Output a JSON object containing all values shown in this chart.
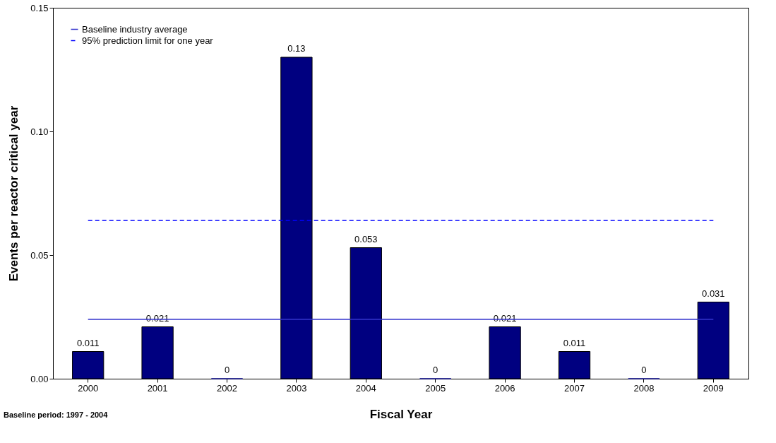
{
  "chart_data": {
    "type": "bar",
    "xlabel": "Fiscal Year",
    "ylabel": "Events per reactor critical year",
    "categories": [
      "2000",
      "2001",
      "2002",
      "2003",
      "2004",
      "2005",
      "2006",
      "2007",
      "2008",
      "2009"
    ],
    "values": [
      0.011,
      0.021,
      0,
      0.13,
      0.053,
      0,
      0.021,
      0.011,
      0,
      0.031
    ],
    "color": "#000080",
    "data_labels": true,
    "ylim": [
      0,
      0.15
    ],
    "yticks": [
      {
        "value": 0,
        "label": "0.00"
      },
      {
        "value": 0.05,
        "label": "0.05"
      },
      {
        "value": 0.1,
        "label": "0.10"
      },
      {
        "value": 0.15,
        "label": "0.15"
      }
    ],
    "grid": false,
    "legend": "top left",
    "ref_lines": [
      {
        "axis": "y",
        "value": 0.024,
        "label": "Baseline industry average",
        "color": "#3333cc",
        "line_style": "solid"
      },
      {
        "axis": "y",
        "value": 0.064,
        "label": "95% prediction limit for one year",
        "color": "#0000ff",
        "line_style": "dashed"
      }
    ],
    "annotations": [
      "Baseline period:  1997 - 2004"
    ]
  }
}
